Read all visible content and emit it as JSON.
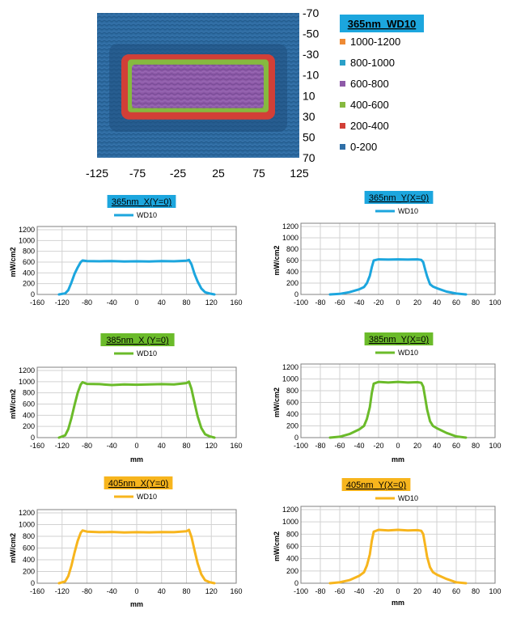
{
  "colors": {
    "blue": "#1ca6de",
    "green": "#6bbb2a",
    "orange": "#f7b51d",
    "grid": "#d2d2d2",
    "axis": "#808080",
    "map_bg": "#2c6aa0",
    "map_deep": "#1f4f7e"
  },
  "chart_data": [
    {
      "type": "heatmap",
      "title": "365nm_WD10",
      "x_ticks": [
        "-125",
        "-75",
        "-25",
        "25",
        "75",
        "125"
      ],
      "y_ticks": [
        "-70",
        "-50",
        "-30",
        "-10",
        "10",
        "30",
        "50",
        "70"
      ],
      "xlim": [
        -125,
        125
      ],
      "ylim": [
        -70,
        70
      ],
      "legend": [
        {
          "label": "1000-1200",
          "color": "#ee8a34"
        },
        {
          "label": "800-1000",
          "color": "#2aa0c8"
        },
        {
          "label": "600-800",
          "color": "#8e5aa8"
        },
        {
          "label": "400-600",
          "color": "#86b93f"
        },
        {
          "label": "200-400",
          "color": "#d23f37"
        },
        {
          "label": "0-200",
          "color": "#2f6fa7"
        }
      ],
      "regions": [
        {
          "range": "200-400",
          "x": [
            -95,
            95
          ],
          "y": [
            -30,
            33
          ]
        },
        {
          "range": "400-600",
          "x": [
            -87,
            87
          ],
          "y": [
            -25,
            26
          ]
        },
        {
          "range": "600-800",
          "x": [
            -82,
            81
          ],
          "y": [
            -20,
            22
          ]
        }
      ],
      "legend_position": "right"
    },
    {
      "type": "line",
      "title": "365nm_X(Y=0)",
      "series": [
        {
          "name": "WD10",
          "color": "#1ca6de",
          "x": [
            -125,
            -115,
            -110,
            -105,
            -100,
            -95,
            -90,
            -87,
            -80,
            -60,
            -40,
            -20,
            0,
            20,
            40,
            60,
            80,
            84,
            88,
            93,
            98,
            104,
            110,
            118,
            125
          ],
          "y": [
            0,
            20,
            80,
            220,
            380,
            500,
            600,
            630,
            620,
            615,
            620,
            610,
            615,
            612,
            618,
            615,
            625,
            640,
            560,
            380,
            240,
            110,
            40,
            15,
            0
          ]
        }
      ],
      "xlim": [
        -160,
        160
      ],
      "x_ticks": [
        -160,
        -120,
        -80,
        -40,
        0,
        40,
        80,
        120,
        160
      ],
      "ylim": [
        0,
        1200
      ],
      "y_ticks": [
        0,
        200,
        400,
        600,
        800,
        1000,
        1200
      ],
      "xlabel": "",
      "ylabel": "mW/cm2",
      "grid": true,
      "legend_position": "top"
    },
    {
      "type": "line",
      "title": "365nm_Y(X=0)",
      "series": [
        {
          "name": "WD10",
          "color": "#1ca6de",
          "x": [
            -70,
            -60,
            -50,
            -40,
            -35,
            -32,
            -29,
            -27,
            -25,
            -20,
            -10,
            0,
            10,
            20,
            24,
            26,
            28,
            30,
            33,
            36,
            40,
            50,
            60,
            70
          ],
          "y": [
            0,
            10,
            40,
            90,
            130,
            200,
            330,
            480,
            600,
            620,
            615,
            620,
            615,
            620,
            610,
            570,
            440,
            320,
            180,
            140,
            110,
            50,
            15,
            0
          ]
        }
      ],
      "xlim": [
        -100,
        100
      ],
      "x_ticks": [
        -100,
        -80,
        -60,
        -40,
        -20,
        0,
        20,
        40,
        60,
        80,
        100
      ],
      "ylim": [
        0,
        1200
      ],
      "y_ticks": [
        0,
        200,
        400,
        600,
        800,
        1000,
        1200
      ],
      "xlabel": "",
      "ylabel": "mW/cm2",
      "grid": true,
      "legend_position": "top"
    },
    {
      "type": "line",
      "title": "385nm_X (Y=0)",
      "series": [
        {
          "name": "WD10",
          "color": "#6bbb2a",
          "x": [
            -125,
            -115,
            -110,
            -105,
            -100,
            -95,
            -90,
            -87,
            -80,
            -60,
            -40,
            -20,
            0,
            20,
            40,
            60,
            80,
            84,
            88,
            93,
            98,
            104,
            110,
            118,
            125
          ],
          "y": [
            0,
            40,
            150,
            350,
            580,
            800,
            950,
            990,
            960,
            955,
            940,
            950,
            945,
            950,
            955,
            950,
            975,
            1000,
            870,
            620,
            380,
            170,
            60,
            20,
            0
          ]
        }
      ],
      "xlim": [
        -160,
        160
      ],
      "x_ticks": [
        -160,
        -120,
        -80,
        -40,
        0,
        40,
        80,
        120,
        160
      ],
      "ylim": [
        0,
        1200
      ],
      "y_ticks": [
        0,
        200,
        400,
        600,
        800,
        1000,
        1200
      ],
      "xlabel": "mm",
      "ylabel": "mW/cm2",
      "grid": true,
      "legend_position": "top"
    },
    {
      "type": "line",
      "title": "385nm_Y(X=0)",
      "series": [
        {
          "name": "WD10",
          "color": "#6bbb2a",
          "x": [
            -70,
            -60,
            -50,
            -40,
            -35,
            -32,
            -29,
            -27,
            -25,
            -20,
            -10,
            0,
            10,
            20,
            24,
            26,
            28,
            30,
            33,
            36,
            40,
            50,
            60,
            70
          ],
          "y": [
            0,
            15,
            60,
            140,
            200,
            320,
            520,
            760,
            920,
            950,
            940,
            950,
            940,
            945,
            935,
            870,
            680,
            480,
            280,
            200,
            160,
            80,
            20,
            0
          ]
        }
      ],
      "xlim": [
        -100,
        100
      ],
      "x_ticks": [
        -100,
        -80,
        -60,
        -40,
        -20,
        0,
        20,
        40,
        60,
        80,
        100
      ],
      "ylim": [
        0,
        1200
      ],
      "y_ticks": [
        0,
        200,
        400,
        600,
        800,
        1000,
        1200
      ],
      "xlabel": "mm",
      "ylabel": "mW/cm2",
      "grid": true,
      "legend_position": "top"
    },
    {
      "type": "line",
      "title": "405nm_X(Y=0)",
      "series": [
        {
          "name": "WD10",
          "color": "#f7b51d",
          "x": [
            -125,
            -115,
            -110,
            -105,
            -100,
            -95,
            -90,
            -87,
            -80,
            -60,
            -40,
            -20,
            0,
            20,
            40,
            60,
            80,
            84,
            88,
            93,
            98,
            104,
            110,
            118,
            125
          ],
          "y": [
            0,
            30,
            120,
            300,
            520,
            720,
            860,
            900,
            880,
            870,
            875,
            865,
            870,
            868,
            872,
            870,
            885,
            910,
            790,
            560,
            340,
            150,
            50,
            15,
            0
          ]
        }
      ],
      "xlim": [
        -160,
        160
      ],
      "x_ticks": [
        -160,
        -120,
        -80,
        -40,
        0,
        40,
        80,
        120,
        160
      ],
      "ylim": [
        0,
        1200
      ],
      "y_ticks": [
        0,
        200,
        400,
        600,
        800,
        1000,
        1200
      ],
      "xlabel": "mm",
      "ylabel": "mW/cm2",
      "grid": true,
      "legend_position": "top"
    },
    {
      "type": "line",
      "title": "405nm_Y(X=0)",
      "series": [
        {
          "name": "WD10",
          "color": "#f7b51d",
          "x": [
            -70,
            -60,
            -50,
            -40,
            -35,
            -32,
            -29,
            -27,
            -25,
            -20,
            -10,
            0,
            10,
            20,
            24,
            26,
            28,
            30,
            33,
            36,
            40,
            50,
            60,
            70
          ],
          "y": [
            0,
            15,
            50,
            120,
            180,
            290,
            470,
            690,
            840,
            870,
            860,
            870,
            860,
            865,
            855,
            800,
            620,
            430,
            260,
            180,
            140,
            70,
            15,
            0
          ]
        }
      ],
      "xlim": [
        -100,
        100
      ],
      "x_ticks": [
        -100,
        -80,
        -60,
        -40,
        -20,
        0,
        20,
        40,
        60,
        80,
        100
      ],
      "ylim": [
        0,
        1200
      ],
      "y_ticks": [
        0,
        200,
        400,
        600,
        800,
        1000,
        1200
      ],
      "xlabel": "mm",
      "ylabel": "mW/cm2",
      "grid": true,
      "legend_position": "top"
    }
  ]
}
